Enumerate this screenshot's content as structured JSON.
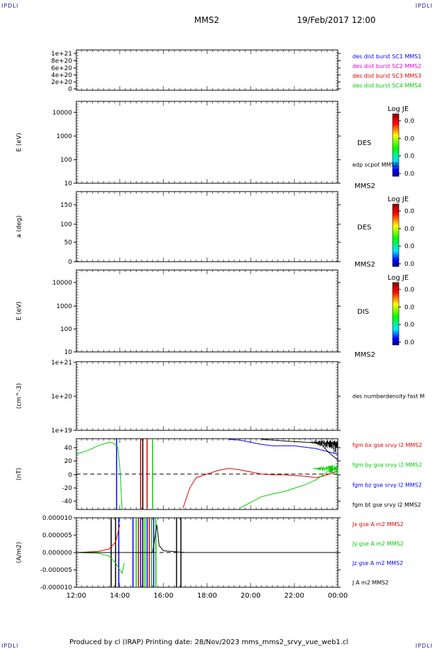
{
  "header": {
    "corner_logo": "IPDLI",
    "spacecraft": "MMS2",
    "datetime": "19/Feb/2017 12:00"
  },
  "footer": {
    "text": "Produced by cl (IRAP)   Printing date: 28/Nov/2023   mms_mms2_srvy_vue_web1.cl"
  },
  "colors": {
    "blue": "#0000ff",
    "magenta": "#e000e0",
    "red": "#e00000",
    "green": "#00cc00",
    "black": "#000000"
  },
  "chart_data": [
    {
      "type": "line",
      "panel": "des-dist-burst",
      "ylabel": "",
      "yticks": [
        "1e+21",
        "8e+20",
        "6e+20",
        "4e+20",
        "2e+20",
        "0"
      ],
      "ylim": [
        0,
        1.1e+21
      ],
      "dashed_zero": true,
      "legend": [
        {
          "label": "des dist burst SC1 MMS1",
          "color": "#0000ff"
        },
        {
          "label": "des dist burst SC2 MMS2",
          "color": "#e000e0"
        },
        {
          "label": "des dist burst SC3 MMS3",
          "color": "#e00000"
        },
        {
          "label": "des dist burst SC4 MMS4",
          "color": "#00cc00"
        }
      ]
    },
    {
      "type": "heatmap",
      "panel": "des-energy",
      "ylabel": "E (eV)",
      "yscale": "log",
      "yticks": [
        "10000",
        "1000",
        "100",
        "10"
      ],
      "right_label": "DES",
      "side_label": "edp scpot MMS2",
      "bottom_right_label": "MMS2",
      "colorbar": {
        "title": "Log JE",
        "ticks": [
          "0.0",
          "0.0",
          "0.0",
          "0.0"
        ]
      }
    },
    {
      "type": "heatmap",
      "panel": "des-pitch",
      "ylabel": "a (deg)",
      "yticks": [
        "150",
        "100",
        "50",
        "0"
      ],
      "ylim": [
        0,
        180
      ],
      "right_label": "DES",
      "bottom_right_label": "MMS2",
      "colorbar": {
        "title": "Log JE",
        "ticks": [
          "0.0",
          "0.0",
          "0.0",
          "0.0"
        ]
      }
    },
    {
      "type": "heatmap",
      "panel": "dis-energy",
      "ylabel": "E (eV)",
      "yscale": "log",
      "yticks": [
        "10000",
        "1000",
        "100",
        "10"
      ],
      "right_label": "DIS",
      "bottom_right_label": "MMS2",
      "colorbar": {
        "title": "Log JE",
        "ticks": [
          "0.0",
          "0.0",
          "0.0",
          "0.0"
        ]
      }
    },
    {
      "type": "line",
      "panel": "density",
      "ylabel": "(cm^-3)",
      "yscale": "log",
      "yticks": [
        "1e+21",
        "1e+20",
        "1e+19"
      ],
      "legend": [
        {
          "label": "des numberdensity fast M",
          "color": "#000000"
        }
      ]
    },
    {
      "type": "line",
      "panel": "fgm",
      "ylabel": "(nT)",
      "yticks": [
        "40",
        "20",
        "0",
        "-20",
        "-40"
      ],
      "ylim": [
        -50,
        50
      ],
      "dashed_zero": true,
      "legend": [
        {
          "label": "fgm bx gse srvy l2 MMS2",
          "color": "#e00000"
        },
        {
          "label": "fgm by gse srvy l2 MMS2",
          "color": "#00cc00"
        },
        {
          "label": "fgm bz gse srvy l2 MMS2",
          "color": "#0000ff"
        },
        {
          "label": "fgm bt gse srvy l2 MMS2",
          "color": "#000000"
        }
      ],
      "series": [
        {
          "name": "fgm bx gse srvy l2 MMS2",
          "color": "#e00000",
          "x": [
            16.9,
            17.2,
            17.5,
            18.0,
            18.5,
            19.0,
            19.5,
            20.0,
            20.5,
            21.0,
            21.5,
            22.0,
            22.5,
            23.0,
            23.3,
            23.6,
            23.9,
            24.0
          ],
          "y": [
            -48,
            -20,
            -5,
            0,
            5,
            8,
            6,
            3,
            0,
            -1,
            -1,
            -2,
            -3,
            -5,
            -3,
            0,
            3,
            5
          ]
        },
        {
          "name": "fgm by gse srvy l2 MMS2",
          "color": "#00cc00",
          "x": [
            12.0,
            12.5,
            13.0,
            13.5,
            13.7,
            13.9,
            14.0,
            14.1
          ],
          "y": [
            28,
            33,
            40,
            45,
            44,
            38,
            10,
            -50
          ]
        },
        {
          "name": "fgm by gse srvy l2 MMS2 (late)",
          "color": "#00cc00",
          "x": [
            19.5,
            20.0,
            20.5,
            21.0,
            21.5,
            22.0,
            22.5,
            23.0,
            23.3,
            23.6,
            24.0
          ],
          "y": [
            -48,
            -40,
            -32,
            -28,
            -25,
            -20,
            -15,
            -8,
            -2,
            5,
            8
          ]
        },
        {
          "name": "fgm bz gse srvy l2 MMS2",
          "color": "#0000ff",
          "x": [
            19.0,
            19.5,
            20.0,
            20.5,
            21.0,
            21.5,
            22.0,
            22.5,
            23.0,
            23.5,
            24.0
          ],
          "y": [
            49,
            48,
            45,
            42,
            40,
            40,
            40,
            38,
            36,
            32,
            28
          ]
        },
        {
          "name": "fgm bt gse srvy l2 MMS2",
          "color": "#000000",
          "x": [
            20.5,
            21.0,
            21.5,
            22.0,
            22.5,
            23.0,
            23.3,
            23.6,
            24.0
          ],
          "y": [
            49,
            48,
            47,
            46,
            45,
            44,
            40,
            30,
            20
          ]
        }
      ],
      "vertical_markers": [
        {
          "x": 13.85,
          "color": "#0000ff"
        },
        {
          "x": 14.95,
          "color": "#e00000"
        },
        {
          "x": 15.05,
          "color": "#000000"
        },
        {
          "x": 15.25,
          "color": "#e00000"
        },
        {
          "x": 15.5,
          "color": "#00cc00"
        }
      ]
    },
    {
      "type": "line",
      "panel": "current",
      "ylabel": "(A/m2)",
      "yticks": [
        "0.000010",
        "0.000005",
        "0.000000",
        "-0.000005",
        "-0.000010"
      ],
      "ylim": [
        -1e-05,
        1e-05
      ],
      "dashed_zero": true,
      "legend": [
        {
          "label": "Jx gse A m2 MMS2",
          "color": "#e00000"
        },
        {
          "label": "Jy gse A m2 MMS2",
          "color": "#00cc00"
        },
        {
          "label": "Jz gse A m2 MMS2",
          "color": "#0000ff"
        },
        {
          "label": "J A m2 MMS2",
          "color": "#000000"
        }
      ],
      "series": [
        {
          "name": "Jy gse A m2 MMS2",
          "color": "#00cc00",
          "x": [
            12.0,
            13.0,
            13.5,
            13.8,
            14.0,
            14.1,
            14.2
          ],
          "y": [
            0.0,
            -2e-07,
            -1e-06,
            -3e-06,
            -5e-06,
            -6e-06,
            -3e-06
          ]
        },
        {
          "name": "Jx gse A m2 MMS2",
          "color": "#e00000",
          "x": [
            12.0,
            13.0,
            13.5,
            13.8,
            14.0
          ],
          "y": [
            0.0,
            3e-07,
            1e-06,
            3e-06,
            8e-06
          ]
        },
        {
          "name": "J A m2 MMS2",
          "color": "#000000",
          "x": [
            12.0,
            15.5,
            15.7,
            15.8,
            16.0,
            17.0,
            20.0,
            24.0
          ],
          "y": [
            0.0,
            0.0,
            8e-06,
            2e-06,
            5e-07,
            0.0,
            0.0,
            0.0
          ]
        }
      ],
      "vertical_markers": [
        {
          "x": 13.6,
          "color": "#000000"
        },
        {
          "x": 13.8,
          "color": "#000000"
        },
        {
          "x": 13.95,
          "color": "#0000ff"
        },
        {
          "x": 14.6,
          "color": "#0000ff"
        },
        {
          "x": 14.75,
          "color": "#00cc00"
        },
        {
          "x": 14.85,
          "color": "#e00000"
        },
        {
          "x": 14.95,
          "color": "#0000ff"
        },
        {
          "x": 15.05,
          "color": "#000000"
        },
        {
          "x": 15.15,
          "color": "#00cc00"
        },
        {
          "x": 15.25,
          "color": "#0000ff"
        },
        {
          "x": 15.35,
          "color": "#e00000"
        },
        {
          "x": 15.45,
          "color": "#00cc00"
        },
        {
          "x": 15.55,
          "color": "#0000ff"
        },
        {
          "x": 15.65,
          "color": "#00cc00"
        },
        {
          "x": 16.6,
          "color": "#000000"
        },
        {
          "x": 16.8,
          "color": "#000000"
        }
      ]
    }
  ],
  "xaxis": {
    "ticks": [
      "12:00",
      "14:00",
      "16:00",
      "18:00",
      "20:00",
      "22:00",
      "00:00"
    ],
    "xlim": [
      12,
      24
    ]
  }
}
